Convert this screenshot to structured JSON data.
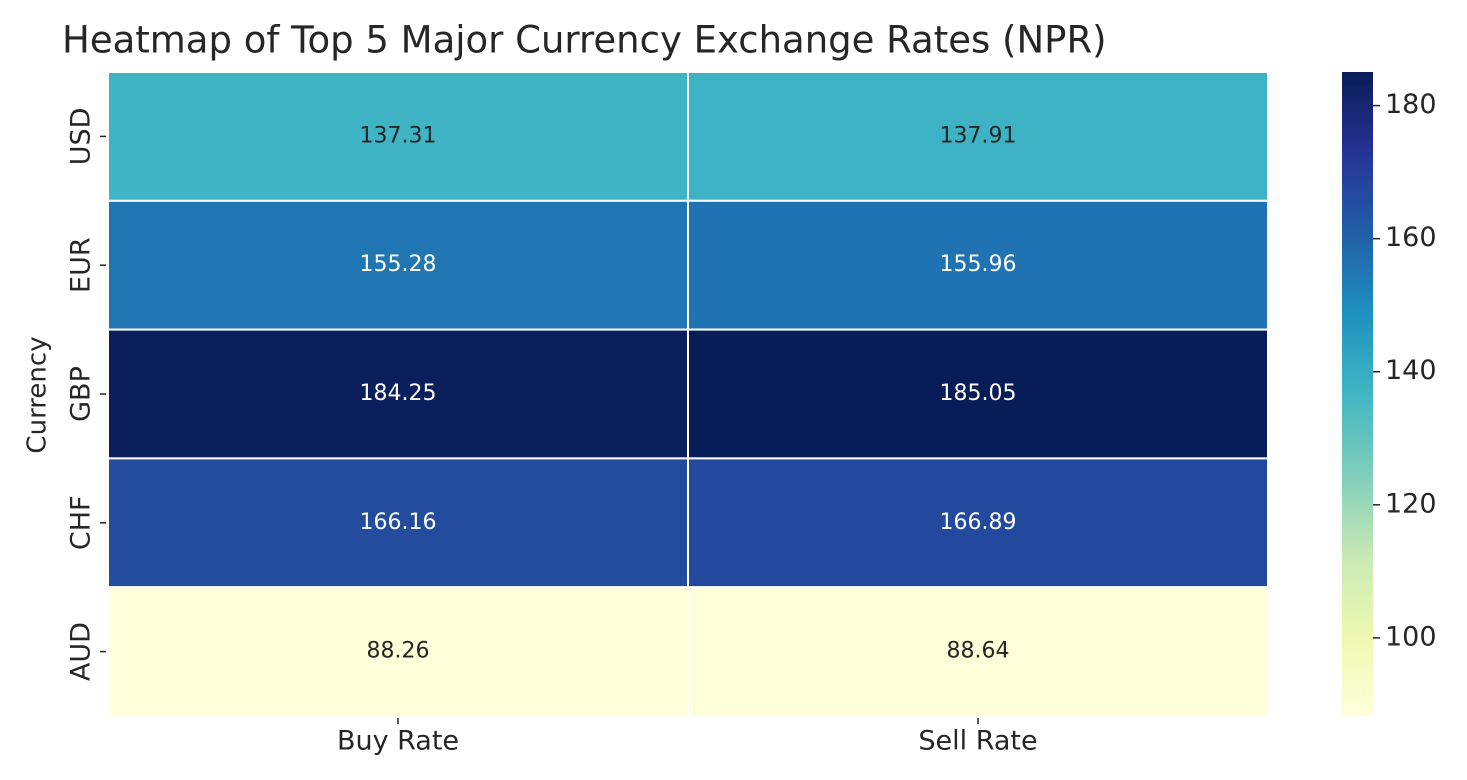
{
  "chart_data": {
    "type": "heatmap",
    "title": "Heatmap of Top 5 Major Currency Exchange Rates (NPR)",
    "ylabel": "Currency",
    "x_categories": [
      "Buy Rate",
      "Sell Rate"
    ],
    "y_categories": [
      "USD",
      "EUR",
      "GBP",
      "CHF",
      "AUD"
    ],
    "values": [
      [
        137.31,
        137.91
      ],
      [
        155.28,
        155.96
      ],
      [
        184.25,
        185.05
      ],
      [
        166.16,
        166.89
      ],
      [
        88.26,
        88.64
      ]
    ],
    "colormap": "YlGnBu",
    "clim": [
      88.26,
      185.05
    ],
    "cticks": [
      100,
      120,
      140,
      160,
      180
    ]
  }
}
